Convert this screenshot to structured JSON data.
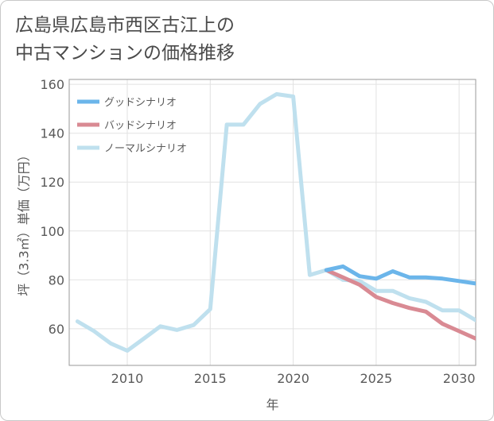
{
  "title": {
    "line1": "広島県広島市西区古江上の",
    "line2": "中古マンションの価格推移"
  },
  "chart_data": {
    "type": "line",
    "title": "広島県広島市西区古江上の中古マンションの価格推移",
    "xlabel": "年",
    "ylabel": "坪（3.3㎡）単価（万円）",
    "xlim": [
      2006.5,
      2031
    ],
    "ylim": [
      45,
      162
    ],
    "xticks": [
      2010,
      2015,
      2020,
      2025,
      2030
    ],
    "yticks": [
      60,
      80,
      100,
      120,
      140,
      160
    ],
    "grid": true,
    "legend_position": "top-left",
    "series": [
      {
        "name": "ノーマルシナリオ",
        "color": "#bfe0ee",
        "x": [
          2007,
          2008,
          2009,
          2010,
          2011,
          2012,
          2013,
          2014,
          2015,
          2016,
          2017,
          2018,
          2019,
          2020,
          2021,
          2022,
          2023,
          2024,
          2025,
          2026,
          2027,
          2028,
          2029,
          2030,
          2031
        ],
        "values": [
          63,
          59,
          54,
          51,
          56,
          61,
          59.5,
          61.5,
          68,
          143.5,
          143.5,
          152,
          156,
          155,
          82,
          84,
          80,
          79.5,
          75.5,
          75.5,
          72.5,
          71,
          67.5,
          67.5,
          63.5
        ]
      },
      {
        "name": "バッドシナリオ",
        "color": "#d98a93",
        "x": [
          2022,
          2023,
          2024,
          2025,
          2026,
          2027,
          2028,
          2029,
          2030,
          2031
        ],
        "values": [
          84,
          81,
          78,
          73,
          70.5,
          68.5,
          67,
          62,
          59,
          56
        ]
      },
      {
        "name": "グッドシナリオ",
        "color": "#6bb5ea",
        "x": [
          2022,
          2023,
          2024,
          2025,
          2026,
          2027,
          2028,
          2029,
          2030,
          2031
        ],
        "values": [
          84,
          85.5,
          81.5,
          80.5,
          83.5,
          81,
          81,
          80.5,
          79.5,
          78.5
        ]
      }
    ],
    "legend": [
      "グッドシナリオ",
      "バッドシナリオ",
      "ノーマルシナリオ"
    ]
  }
}
